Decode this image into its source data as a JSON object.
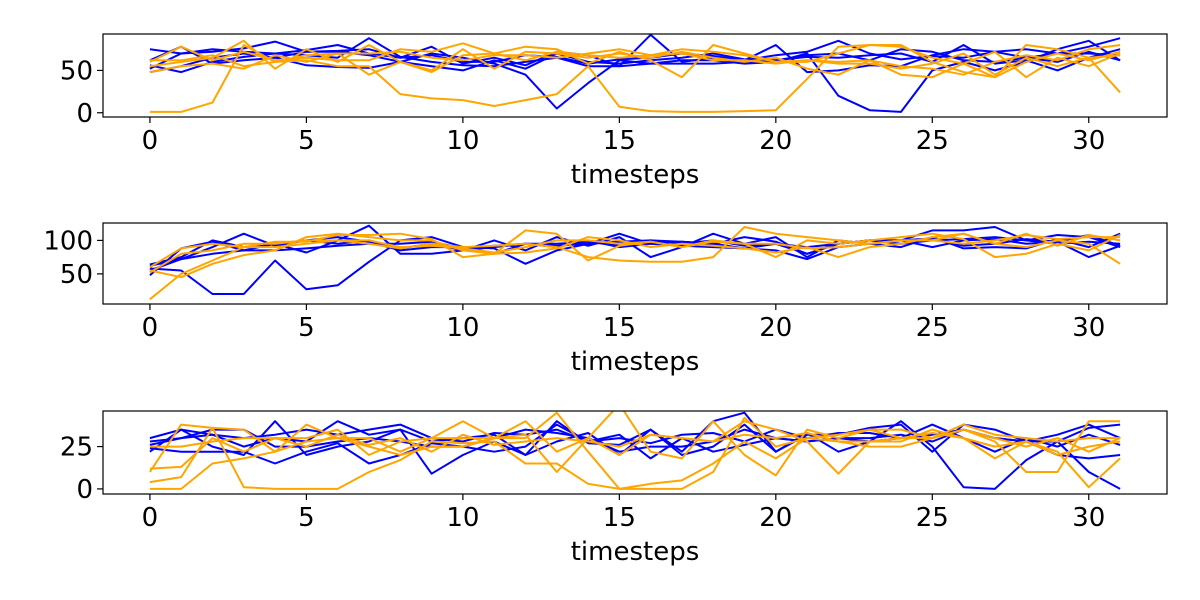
{
  "colors": {
    "blue": "#0000ff",
    "orange": "#ffa500"
  },
  "chart_data": [
    {
      "type": "line",
      "xlabel": "timesteps",
      "xlim": [
        -1.5,
        32.5
      ],
      "ylim": [
        -5,
        93
      ],
      "xticks": [
        0,
        5,
        10,
        15,
        20,
        25,
        30
      ],
      "yticks": [
        0,
        50
      ],
      "series": [
        {
          "color": "blue",
          "values": [
            75,
            70,
            72,
            76,
            84,
            72,
            73,
            75,
            65,
            68,
            60,
            60,
            68,
            66,
            58,
            63,
            65,
            70,
            67,
            62,
            68,
            72,
            85,
            70,
            63,
            67,
            65,
            72,
            65,
            70,
            78,
            88
          ]
        },
        {
          "color": "blue",
          "values": [
            48,
            55,
            65,
            70,
            65,
            56,
            54,
            53,
            60,
            55,
            50,
            62,
            52,
            70,
            60,
            58,
            62,
            65,
            70,
            63,
            62,
            68,
            70,
            62,
            75,
            72,
            62,
            60,
            65,
            60,
            72,
            62
          ]
        },
        {
          "color": "blue",
          "values": [
            52,
            70,
            75,
            72,
            70,
            74,
            80,
            70,
            65,
            78,
            58,
            65,
            56,
            72,
            68,
            55,
            92,
            60,
            65,
            62,
            80,
            48,
            50,
            56,
            55,
            68,
            75,
            72,
            75,
            70,
            70,
            68
          ]
        },
        {
          "color": "blue",
          "values": [
            62,
            78,
            58,
            62,
            65,
            72,
            72,
            68,
            60,
            70,
            65,
            58,
            45,
            5,
            35,
            62,
            58,
            62,
            62,
            58,
            60,
            70,
            20,
            3,
            1,
            50,
            60,
            50,
            60,
            75,
            85,
            62
          ]
        },
        {
          "color": "blue",
          "values": [
            56,
            48,
            60,
            66,
            70,
            68,
            65,
            88,
            66,
            60,
            56,
            55,
            60,
            65,
            55,
            55,
            58,
            58,
            58,
            60,
            62,
            66,
            65,
            68,
            70,
            60,
            80,
            58,
            62,
            50,
            65,
            75
          ]
        },
        {
          "color": "orange",
          "values": [
            1,
            1,
            12,
            80,
            60,
            62,
            55,
            55,
            22,
            17,
            15,
            8,
            15,
            22,
            55,
            7,
            2,
            1,
            1,
            2,
            3,
            40,
            78,
            80,
            78,
            65,
            58,
            42,
            80,
            75,
            65,
            24
          ]
        },
        {
          "color": "orange",
          "values": [
            48,
            55,
            58,
            52,
            68,
            60,
            70,
            45,
            60,
            50,
            75,
            52,
            72,
            70,
            65,
            70,
            65,
            72,
            65,
            60,
            65,
            52,
            45,
            62,
            45,
            42,
            58,
            72,
            42,
            65,
            55,
            70
          ]
        },
        {
          "color": "orange",
          "values": [
            60,
            78,
            62,
            72,
            62,
            65,
            62,
            62,
            75,
            72,
            82,
            70,
            78,
            75,
            58,
            72,
            62,
            42,
            80,
            70,
            60,
            60,
            70,
            80,
            80,
            60,
            48,
            42,
            60,
            70,
            62,
            72
          ]
        },
        {
          "color": "orange",
          "values": [
            55,
            60,
            65,
            85,
            52,
            75,
            60,
            80,
            60,
            48,
            68,
            70,
            62,
            72,
            68,
            65,
            68,
            75,
            72,
            68,
            60,
            62,
            58,
            58,
            52,
            58,
            70,
            45,
            65,
            55,
            65,
            68
          ]
        },
        {
          "color": "orange",
          "values": [
            62,
            62,
            68,
            55,
            60,
            68,
            70,
            70,
            72,
            65,
            62,
            68,
            68,
            65,
            70,
            75,
            68,
            70,
            62,
            62,
            58,
            62,
            60,
            62,
            55,
            52,
            45,
            60,
            68,
            62,
            75,
            80
          ]
        }
      ]
    },
    {
      "type": "line",
      "xlabel": "timesteps",
      "xlim": [
        -1.5,
        32.5
      ],
      "ylim": [
        5,
        126
      ],
      "xticks": [
        0,
        5,
        10,
        15,
        20,
        25,
        30
      ],
      "yticks": [
        50,
        100
      ],
      "series": [
        {
          "color": "blue",
          "values": [
            64,
            75,
            100,
            90,
            95,
            100,
            105,
            98,
            85,
            90,
            90,
            88,
            65,
            85,
            95,
            110,
            95,
            98,
            95,
            88,
            85,
            72,
            90,
            95,
            100,
            103,
            92,
            95,
            102,
            98,
            108,
            92
          ]
        },
        {
          "color": "blue",
          "values": [
            58,
            55,
            20,
            20,
            70,
            27,
            33,
            68,
            100,
            105,
            90,
            80,
            95,
            90,
            100,
            90,
            95,
            92,
            90,
            88,
            95,
            80,
            95,
            100,
            100,
            115,
            115,
            120,
            100,
            108,
            105,
            90
          ]
        },
        {
          "color": "blue",
          "values": [
            48,
            88,
            98,
            85,
            95,
            82,
            100,
            122,
            80,
            80,
            85,
            100,
            85,
            105,
            92,
            105,
            75,
            90,
            110,
            95,
            105,
            75,
            100,
            95,
            90,
            105,
            88,
            90,
            88,
            102,
            90,
            110
          ]
        },
        {
          "color": "blue",
          "values": [
            55,
            72,
            90,
            110,
            92,
            100,
            95,
            100,
            88,
            95,
            85,
            90,
            95,
            95,
            98,
            92,
            100,
            98,
            95,
            105,
            98,
            80,
            95,
            100,
            100,
            90,
            100,
            102,
            95,
            98,
            75,
            92
          ]
        },
        {
          "color": "blue",
          "values": [
            62,
            72,
            80,
            85,
            85,
            88,
            92,
            95,
            95,
            98,
            88,
            92,
            95,
            92,
            95,
            98,
            100,
            95,
            100,
            92,
            95,
            90,
            95,
            100,
            95,
            100,
            102,
            105,
            100,
            95,
            98,
            95
          ]
        },
        {
          "color": "orange",
          "values": [
            12,
            50,
            70,
            90,
            90,
            95,
            100,
            95,
            88,
            95,
            90,
            92,
            95,
            90,
            75,
            70,
            68,
            68,
            75,
            120,
            110,
            105,
            100,
            95,
            100,
            100,
            110,
            95,
            90,
            100,
            95,
            65
          ]
        },
        {
          "color": "orange",
          "values": [
            55,
            45,
            65,
            78,
            85,
            105,
            110,
            105,
            100,
            100,
            85,
            80,
            115,
            110,
            70,
            92,
            98,
            90,
            100,
            95,
            75,
            100,
            95,
            100,
            105,
            110,
            102,
            75,
            80,
            95,
            85,
            108
          ]
        },
        {
          "color": "orange",
          "values": [
            60,
            88,
            95,
            90,
            98,
            98,
            108,
            108,
            110,
            102,
            75,
            80,
            82,
            88,
            105,
            100,
            90,
            95,
            92,
            88,
            82,
            90,
            75,
            90,
            95,
            105,
            110,
            95,
            110,
            92,
            108,
            100
          ]
        },
        {
          "color": "orange",
          "values": [
            52,
            80,
            85,
            95,
            95,
            100,
            100,
            100,
            90,
            92,
            88,
            82,
            90,
            100,
            100,
            95,
            98,
            90,
            98,
            95,
            95,
            88,
            90,
            95,
            100,
            100,
            95,
            100,
            108,
            102,
            105,
            105
          ]
        }
      ]
    },
    {
      "type": "line",
      "xlabel": "timesteps",
      "xlim": [
        -1.5,
        32.5
      ],
      "ylim": [
        -3,
        46
      ],
      "xticks": [
        0,
        5,
        10,
        15,
        20,
        25,
        30
      ],
      "yticks": [
        0,
        25
      ],
      "series": [
        {
          "color": "blue",
          "values": [
            22,
            35,
            25,
            20,
            40,
            20,
            25,
            28,
            35,
            9,
            20,
            28,
            20,
            40,
            27,
            26,
            35,
            20,
            25,
            38,
            22,
            33,
            22,
            28,
            40,
            25,
            1,
            0,
            17,
            28,
            10,
            0
          ]
        },
        {
          "color": "blue",
          "values": [
            28,
            30,
            32,
            25,
            30,
            28,
            40,
            32,
            35,
            28,
            30,
            32,
            20,
            28,
            33,
            20,
            35,
            22,
            40,
            45,
            22,
            32,
            32,
            36,
            38,
            22,
            38,
            35,
            28,
            32,
            38,
            30
          ]
        },
        {
          "color": "blue",
          "values": [
            24,
            22,
            22,
            22,
            15,
            22,
            27,
            15,
            20,
            27,
            25,
            22,
            25,
            38,
            28,
            32,
            18,
            30,
            22,
            26,
            30,
            28,
            30,
            28,
            30,
            38,
            30,
            22,
            30,
            25,
            32,
            26
          ]
        },
        {
          "color": "blue",
          "values": [
            26,
            30,
            35,
            35,
            25,
            25,
            28,
            30,
            28,
            25,
            25,
            30,
            35,
            33,
            30,
            22,
            25,
            25,
            28,
            35,
            30,
            28,
            30,
            30,
            32,
            28,
            35,
            30,
            28,
            20,
            18,
            20
          ]
        },
        {
          "color": "blue",
          "values": [
            30,
            35,
            32,
            30,
            32,
            35,
            32,
            35,
            38,
            30,
            28,
            33,
            32,
            35,
            28,
            30,
            27,
            32,
            33,
            28,
            35,
            30,
            33,
            33,
            30,
            32,
            35,
            30,
            28,
            28,
            36,
            38
          ]
        },
        {
          "color": "orange",
          "values": [
            4,
            7,
            36,
            1,
            0,
            0,
            0,
            10,
            17,
            28,
            27,
            28,
            15,
            15,
            3,
            0,
            0,
            0,
            10,
            42,
            25,
            30,
            32,
            35,
            30,
            33,
            30,
            25,
            28,
            22,
            1,
            18
          ]
        },
        {
          "color": "orange",
          "values": [
            10,
            38,
            36,
            35,
            22,
            38,
            30,
            30,
            22,
            30,
            40,
            30,
            40,
            22,
            30,
            50,
            22,
            18,
            40,
            20,
            8,
            35,
            30,
            35,
            35,
            30,
            35,
            28,
            10,
            10,
            40,
            40
          ]
        },
        {
          "color": "orange",
          "values": [
            0,
            0,
            15,
            18,
            22,
            28,
            30,
            25,
            20,
            25,
            25,
            30,
            30,
            45,
            22,
            0,
            3,
            5,
            15,
            28,
            18,
            30,
            28,
            28,
            30,
            30,
            35,
            30,
            25,
            30,
            22,
            30
          ]
        },
        {
          "color": "orange",
          "values": [
            12,
            13,
            30,
            22,
            30,
            30,
            35,
            20,
            28,
            30,
            30,
            30,
            32,
            10,
            30,
            20,
            32,
            30,
            28,
            40,
            35,
            28,
            9,
            28,
            28,
            35,
            30,
            18,
            28,
            20,
            25,
            28
          ]
        },
        {
          "color": "orange",
          "values": [
            25,
            25,
            28,
            30,
            30,
            25,
            32,
            26,
            30,
            22,
            32,
            26,
            28,
            30,
            28,
            25,
            32,
            30,
            28,
            32,
            30,
            33,
            28,
            25,
            25,
            30,
            38,
            32,
            30,
            28,
            30,
            30
          ]
        }
      ]
    }
  ]
}
